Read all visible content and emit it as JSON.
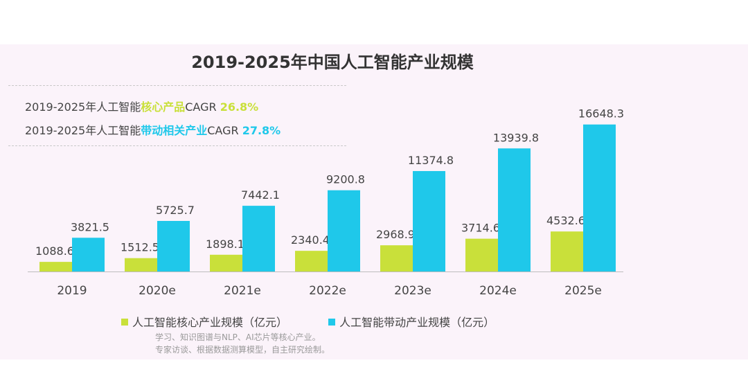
{
  "title": "2019-2025年中国人工智能产业规模",
  "cagr": [
    {
      "prefix": "2019-2025年人工智能",
      "highlight": "核心产品",
      "suffix": "CAGR",
      "value": "26.8%"
    },
    {
      "prefix": "2019-2025年人工智能",
      "highlight": "带动相关产业",
      "suffix": "CAGR",
      "value": "27.8%"
    }
  ],
  "source": {
    "line1": "学习、知识图谱与NLP、AI芯片等核心产业。",
    "line2": "专家访谈、根据数据测算模型，自主研究绘制。"
  },
  "colors": {
    "core": "#c9e03a",
    "drive": "#1fc8ea",
    "background": "#fbf3fa"
  },
  "chart_data": {
    "type": "bar",
    "title": "2019-2025年中国人工智能产业规模",
    "categories": [
      "2019",
      "2020e",
      "2021e",
      "2022e",
      "2023e",
      "2024e",
      "2025e"
    ],
    "series": [
      {
        "name": "人工智能核心产业规模（亿元）",
        "values": [
          1088.6,
          1512.5,
          1898.1,
          2340.4,
          2968.9,
          3714.6,
          4532.6
        ],
        "labels": [
          "1088.6",
          "1512.5",
          "1898.1",
          "2340.4",
          "2968.9",
          "3714.6",
          "4532.6"
        ]
      },
      {
        "name": "人工智能带动产业规模（亿元）",
        "values": [
          3821.5,
          5725.7,
          7442.1,
          9200.8,
          11374.8,
          13939.8,
          16648.3
        ],
        "labels": [
          "3821.5",
          "5725.7",
          "7442.1",
          "9200.8",
          "11374.8",
          "13939.8",
          "16648.3"
        ]
      }
    ],
    "xlabel": "",
    "ylabel": "",
    "legend_position": "bottom",
    "grid": false
  }
}
